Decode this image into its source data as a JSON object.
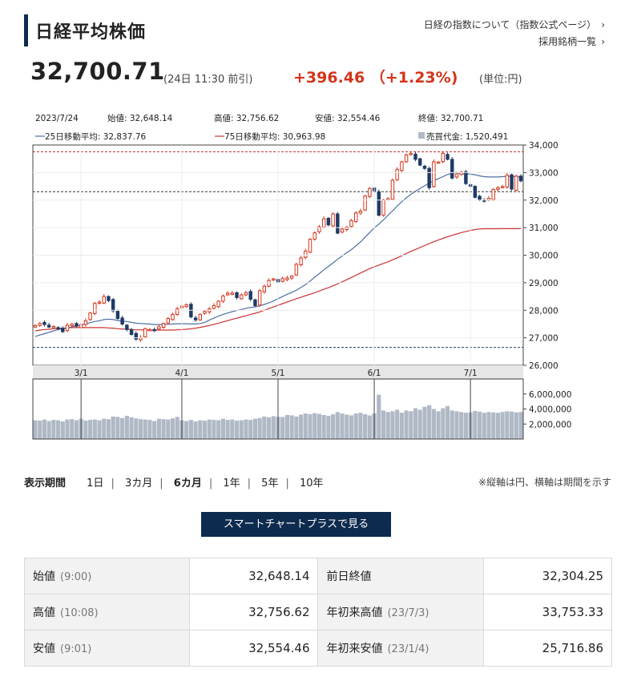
{
  "header": {
    "title": "日経平均株価",
    "link_about": "日経の指数について（指数公式ページ）",
    "link_constituents": "採用銘柄一覧"
  },
  "quote": {
    "price": "32,700.71",
    "time": "(24日 11:30 前引)",
    "change": "+396.46 （+1.23%)",
    "unit": "(単位:円)"
  },
  "chart_info": {
    "date": "2023/7/24",
    "open": "始値: 32,648.14",
    "high": "高値: 32,756.62",
    "low": "安値: 32,554.46",
    "close": "終値: 32,700.71",
    "ma25": "25日移動平均: 32,837.76",
    "ma75": "75日移動平均: 30,963.98",
    "volume": "売買代金: 1,520,491"
  },
  "chart_data": {
    "type": "candlestick",
    "price_axis": {
      "min": 26000,
      "max": 34000,
      "ticks": [
        "34,000",
        "33,000",
        "32,000",
        "31,000",
        "30,000",
        "29,000",
        "28,000",
        "27,000",
        "26,000"
      ]
    },
    "volume_axis": {
      "ticks": [
        "6,000,000",
        "4,000,000",
        "2,000,000"
      ]
    },
    "x_labels": [
      "3/1",
      "4/1",
      "5/1",
      "6/1",
      "7/1"
    ],
    "reference_lines": {
      "year_high": 33753.33,
      "prev_close": 32304.25,
      "year_low_marker": 26650
    },
    "closes": [
      27450,
      27520,
      27480,
      27390,
      27410,
      27350,
      27220,
      27460,
      27500,
      27420,
      27480,
      27620,
      27900,
      28250,
      28300,
      28500,
      28350,
      27980,
      27700,
      27500,
      27300,
      27120,
      26950,
      27010,
      27330,
      27300,
      27280,
      27400,
      27520,
      27700,
      27850,
      28050,
      28150,
      28200,
      27760,
      27650,
      27850,
      27960,
      28050,
      28170,
      28330,
      28520,
      28620,
      28620,
      28460,
      28560,
      28640,
      28400,
      28170,
      28710,
      28870,
      29080,
      29140,
      29030,
      29150,
      29170,
      29240,
      29670,
      29900,
      30150,
      30580,
      30810,
      31030,
      31320,
      31100,
      31500,
      30800,
      30950,
      31020,
      31260,
      31530,
      31600,
      32150,
      32420,
      32340,
      31450,
      32010,
      32050,
      32720,
      33110,
      33390,
      33640,
      33690,
      33480,
      33270,
      33150,
      32450,
      33390,
      33380,
      33700,
      33480,
      32800,
      32950,
      33010,
      32600,
      32500,
      32100,
      32020,
      31980,
      32060,
      32390,
      32450,
      32490,
      32900,
      32400,
      32870,
      32700
    ],
    "ma25": [
      27050,
      27100,
      27150,
      27200,
      27250,
      27300,
      27330,
      27360,
      27400,
      27430,
      27470,
      27510,
      27550,
      27590,
      27620,
      27660,
      27680,
      27660,
      27630,
      27600,
      27590,
      27560,
      27530,
      27520,
      27510,
      27500,
      27480,
      27480,
      27480,
      27490,
      27500,
      27510,
      27510,
      27510,
      27500,
      27500,
      27520,
      27560,
      27640,
      27720,
      27790,
      27850,
      27900,
      27950,
      27990,
      28030,
      28070,
      28100,
      28120,
      28160,
      28210,
      28270,
      28340,
      28420,
      28500,
      28580,
      28650,
      28730,
      28830,
      28930,
      29060,
      29200,
      29330,
      29470,
      29590,
      29720,
      29850,
      29970,
      30090,
      30200,
      30340,
      30480,
      30650,
      30820,
      30990,
      31130,
      31280,
      31450,
      31610,
      31780,
      31940,
      32080,
      32210,
      32320,
      32420,
      32520,
      32620,
      32700,
      32780,
      32850,
      32930,
      32980,
      33010,
      32940,
      32960,
      32940,
      32920,
      32880,
      32850,
      32840,
      32840,
      32840,
      32850,
      32860,
      32860,
      32850,
      32838
    ],
    "ma75": [
      27250,
      27280,
      27300,
      27310,
      27330,
      27340,
      27350,
      27360,
      27370,
      27370,
      27370,
      27370,
      27370,
      27370,
      27370,
      27370,
      27360,
      27350,
      27330,
      27320,
      27310,
      27300,
      27290,
      27290,
      27280,
      27280,
      27280,
      27280,
      27280,
      27280,
      27280,
      27290,
      27300,
      27310,
      27330,
      27350,
      27380,
      27410,
      27450,
      27490,
      27530,
      27580,
      27620,
      27670,
      27710,
      27760,
      27800,
      27850,
      27890,
      27940,
      28000,
      28060,
      28120,
      28180,
      28240,
      28300,
      28360,
      28420,
      28470,
      28530,
      28580,
      28640,
      28700,
      28760,
      28820,
      28890,
      28960,
      29030,
      29110,
      29190,
      29270,
      29350,
      29430,
      29510,
      29580,
      29640,
      29700,
      29760,
      29830,
      29900,
      29980,
      30060,
      30140,
      30210,
      30280,
      30350,
      30420,
      30490,
      30550,
      30610,
      30670,
      30720,
      30770,
      30820,
      30860,
      30900,
      30930,
      30950,
      30960,
      30960,
      30960,
      30960,
      30962,
      30963,
      30963,
      30964,
      30964
    ],
    "volumes": [
      2500000,
      2450000,
      2600000,
      2400000,
      2550000,
      2500000,
      2350000,
      2600000,
      2650000,
      2500000,
      2700000,
      2450000,
      2550000,
      2600000,
      2500000,
      2700000,
      2650000,
      3000000,
      2950000,
      2800000,
      3100000,
      2900000,
      2750000,
      2650000,
      2600000,
      2550000,
      2400000,
      2700000,
      2650000,
      2600000,
      2750000,
      2950000,
      2500000,
      2400000,
      2550000,
      2350000,
      2500000,
      2450000,
      2600000,
      2550000,
      2500000,
      2700000,
      2550000,
      2600000,
      2450000,
      2500000,
      2600000,
      2550000,
      2700000,
      2800000,
      3000000,
      2900000,
      3050000,
      2950000,
      2950000,
      3200000,
      3150000,
      3000000,
      3250000,
      3400000,
      3300000,
      3450000,
      3350000,
      3200000,
      3100000,
      3300000,
      3600000,
      3400000,
      3250000,
      3150000,
      3400000,
      3500000,
      3300000,
      3150000,
      3400000,
      5900000,
      3800000,
      3600000,
      3700000,
      3900000,
      3500000,
      3800000,
      3700000,
      4100000,
      3900000,
      4300000,
      4500000,
      4000000,
      3700000,
      4100000,
      4400000,
      3800000,
      3700000,
      3600000,
      3500000,
      3550000,
      3750000,
      3650000,
      3500000,
      3600000,
      3550000,
      3500000,
      3600000,
      3700000,
      3650000,
      3550000,
      3600000
    ]
  },
  "period": {
    "label": "表示期間",
    "options": [
      "1日",
      "3カ月",
      "6カ月",
      "1年",
      "5年",
      "10年"
    ],
    "selected": "6カ月",
    "note": "※縦軸は円、横軸は期間を示す"
  },
  "cta_label": "スマートチャートプラスで見る",
  "stats": [
    {
      "label": "始値",
      "sub": "(9:00)",
      "value": "32,648.14",
      "label2": "前日終値",
      "sub2": "",
      "value2": "32,304.25"
    },
    {
      "label": "高値",
      "sub": "(10:08)",
      "value": "32,756.62",
      "label2": "年初来高値",
      "sub2": "(23/7/3)",
      "value2": "33,753.33"
    },
    {
      "label": "安値",
      "sub": "(9:01)",
      "value": "32,554.46",
      "label2": "年初来安値",
      "sub2": "(23/1/4)",
      "value2": "25,716.86"
    }
  ],
  "colors": {
    "up": "#d2351b",
    "down": "#1f3b66",
    "ma25": "#4d6fa3",
    "ma75": "#cc3333",
    "navy": "#0d2b4e",
    "volume": "#b0b9c6"
  }
}
